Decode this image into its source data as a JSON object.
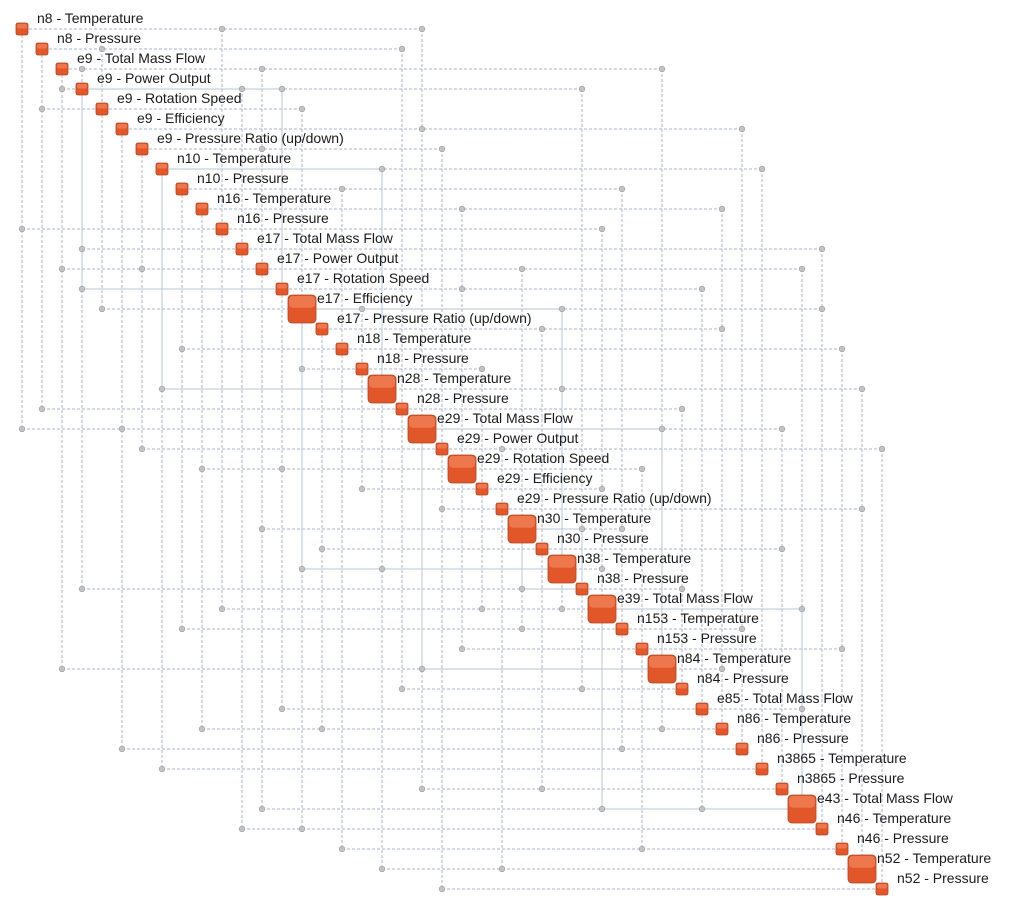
{
  "colors": {
    "node_fill": "#e2572a",
    "node_top": "#f2835a",
    "node_edge": "#b8401c",
    "grid_line": "#a7b6c9",
    "solid_line": "#b7c5d6",
    "dot_fill": "#c3c3c3",
    "dot_edge": "#9a9a9a"
  },
  "nodes": [
    {
      "label": "n8 - Temperature",
      "big": false
    },
    {
      "label": "n8 - Pressure",
      "big": false
    },
    {
      "label": "e9 - Total Mass Flow",
      "big": false
    },
    {
      "label": "e9 - Power Output",
      "big": false
    },
    {
      "label": "e9 - Rotation Speed",
      "big": false
    },
    {
      "label": "e9 - Efficiency",
      "big": false
    },
    {
      "label": "e9 - Pressure Ratio (up/down)",
      "big": false
    },
    {
      "label": "n10 - Temperature",
      "big": false
    },
    {
      "label": "n10 - Pressure",
      "big": false
    },
    {
      "label": "n16 - Temperature",
      "big": false
    },
    {
      "label": "n16 - Pressure",
      "big": false
    },
    {
      "label": "e17 - Total Mass Flow",
      "big": false
    },
    {
      "label": "e17 - Power Output",
      "big": false
    },
    {
      "label": "e17 - Rotation Speed",
      "big": false
    },
    {
      "label": "e17 - Efficiency",
      "big": true
    },
    {
      "label": "e17 - Pressure Ratio (up/down)",
      "big": false
    },
    {
      "label": "n18 - Temperature",
      "big": false
    },
    {
      "label": "n18 - Pressure",
      "big": false
    },
    {
      "label": "n28 - Temperature",
      "big": true
    },
    {
      "label": "n28 - Pressure",
      "big": false
    },
    {
      "label": "e29 - Total Mass Flow",
      "big": true
    },
    {
      "label": "e29 - Power Output",
      "big": false
    },
    {
      "label": "e29 - Rotation Speed",
      "big": true
    },
    {
      "label": "e29 - Efficiency",
      "big": false
    },
    {
      "label": "e29 - Pressure Ratio (up/down)",
      "big": false
    },
    {
      "label": "n30 - Temperature",
      "big": true
    },
    {
      "label": "n30 - Pressure",
      "big": false
    },
    {
      "label": "n38 - Temperature",
      "big": true
    },
    {
      "label": "n38 - Pressure",
      "big": false
    },
    {
      "label": "e39 - Total Mass Flow",
      "big": true
    },
    {
      "label": "n153 - Temperature",
      "big": false
    },
    {
      "label": "n153 - Pressure",
      "big": false
    },
    {
      "label": "n84 - Temperature",
      "big": true
    },
    {
      "label": "n84 - Pressure",
      "big": false
    },
    {
      "label": "e85 - Total Mass Flow",
      "big": false
    },
    {
      "label": "n86 - Temperature",
      "big": false
    },
    {
      "label": "n86 - Pressure",
      "big": false
    },
    {
      "label": "n3865 - Temperature",
      "big": false
    },
    {
      "label": "n3865 - Pressure",
      "big": false
    },
    {
      "label": "e43 - Total Mass Flow",
      "big": true
    },
    {
      "label": "n46 - Temperature",
      "big": false
    },
    {
      "label": "n46 - Pressure",
      "big": false
    },
    {
      "label": "n52 - Temperature",
      "big": true
    },
    {
      "label": "n52 - Pressure",
      "big": false
    }
  ],
  "links": [
    [
      0,
      10
    ],
    [
      1,
      19
    ],
    [
      2,
      3
    ],
    [
      2,
      32
    ],
    [
      3,
      11
    ],
    [
      4,
      14
    ],
    [
      5,
      20
    ],
    [
      7,
      37
    ],
    [
      8,
      16
    ],
    [
      9,
      35
    ],
    [
      12,
      25
    ],
    [
      13,
      22
    ],
    [
      14,
      17
    ],
    [
      14,
      40
    ],
    [
      15,
      26
    ],
    [
      17,
      23
    ],
    [
      18,
      42
    ],
    [
      18,
      27
    ],
    [
      20,
      38
    ],
    [
      21,
      24
    ],
    [
      22,
      31
    ],
    [
      23,
      29
    ],
    [
      25,
      30
    ],
    [
      27,
      29
    ],
    [
      28,
      33
    ],
    [
      30,
      36
    ],
    [
      34,
      39
    ],
    [
      6,
      21
    ],
    [
      11,
      40
    ],
    [
      10,
      29
    ],
    [
      16,
      41
    ],
    [
      24,
      42
    ],
    [
      19,
      33
    ],
    [
      12,
      39
    ],
    [
      26,
      38
    ],
    [
      1,
      4
    ],
    [
      0,
      20
    ],
    [
      3,
      28
    ],
    [
      9,
      22
    ],
    [
      13,
      34
    ],
    [
      8,
      30
    ],
    [
      5,
      36
    ],
    [
      15,
      35
    ],
    [
      21,
      43
    ],
    [
      2,
      12
    ],
    [
      31,
      41
    ],
    [
      32,
      35
    ],
    [
      6,
      12
    ]
  ],
  "solid_links": [
    [
      3,
      13
    ],
    [
      7,
      18
    ],
    [
      14,
      27
    ],
    [
      25,
      28
    ],
    [
      29,
      39
    ],
    [
      20,
      32
    ]
  ]
}
